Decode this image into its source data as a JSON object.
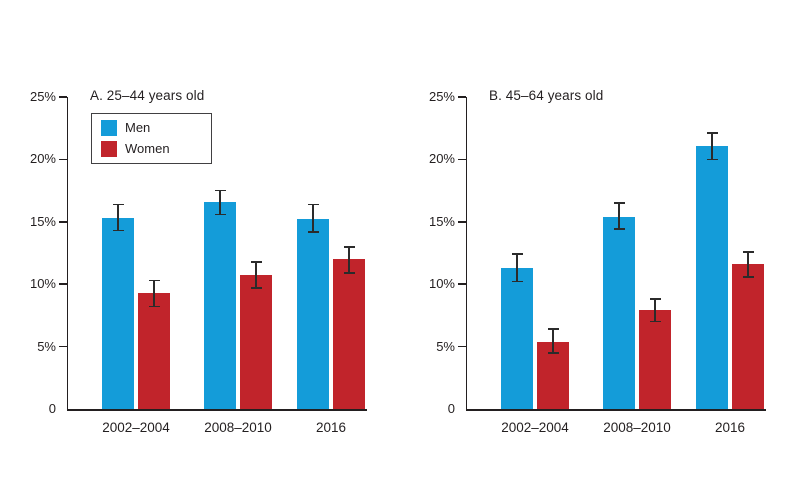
{
  "figure": {
    "background": "#ffffff",
    "text_color": "#231f20",
    "colors": {
      "men": "#149cd9",
      "women": "#c1242b",
      "axis": "#231f20",
      "error_bar": "#2b2b2b"
    }
  },
  "legend": {
    "position": "top-left-of-panel-a",
    "items": [
      {
        "key": "men",
        "label": "Men"
      },
      {
        "key": "women",
        "label": "Women"
      }
    ]
  },
  "chart_data": [
    {
      "type": "bar",
      "title": "A. 25–44 years old",
      "categories": [
        "2002–2004",
        "2008–2010",
        "2016"
      ],
      "series": [
        {
          "name": "Men",
          "values": [
            15.3,
            16.6,
            15.2
          ],
          "ci_low": [
            14.3,
            15.6,
            14.2
          ],
          "ci_high": [
            16.4,
            17.5,
            16.4
          ]
        },
        {
          "name": "Women",
          "values": [
            9.3,
            10.7,
            12.0
          ],
          "ci_low": [
            8.2,
            9.7,
            10.9
          ],
          "ci_high": [
            10.3,
            11.8,
            13.0
          ]
        }
      ],
      "xlabel": "",
      "ylabel": "",
      "ylim": [
        0,
        25
      ],
      "yticks": [
        0,
        5,
        10,
        15,
        20,
        25
      ],
      "ytick_labels": [
        "0",
        "5%",
        "10%",
        "15%",
        "20%",
        "25%"
      ],
      "grid": false,
      "error_bars": true,
      "has_legend": true,
      "legend_position": "top-left"
    },
    {
      "type": "bar",
      "title": "B. 45–64 years old",
      "categories": [
        "2002–2004",
        "2008–2010",
        "2016"
      ],
      "series": [
        {
          "name": "Men",
          "values": [
            11.3,
            15.4,
            21.1
          ],
          "ci_low": [
            10.2,
            14.4,
            20.0
          ],
          "ci_high": [
            12.4,
            16.5,
            22.1
          ]
        },
        {
          "name": "Women",
          "values": [
            5.4,
            7.9,
            11.6
          ],
          "ci_low": [
            4.5,
            7.0,
            10.6
          ],
          "ci_high": [
            6.4,
            8.8,
            12.6
          ]
        }
      ],
      "xlabel": "",
      "ylabel": "",
      "ylim": [
        0,
        25
      ],
      "yticks": [
        0,
        5,
        10,
        15,
        20,
        25
      ],
      "ytick_labels": [
        "0",
        "5%",
        "10%",
        "15%",
        "20%",
        "25%"
      ],
      "grid": false,
      "error_bars": true,
      "has_legend": false,
      "legend_position": "none"
    }
  ]
}
